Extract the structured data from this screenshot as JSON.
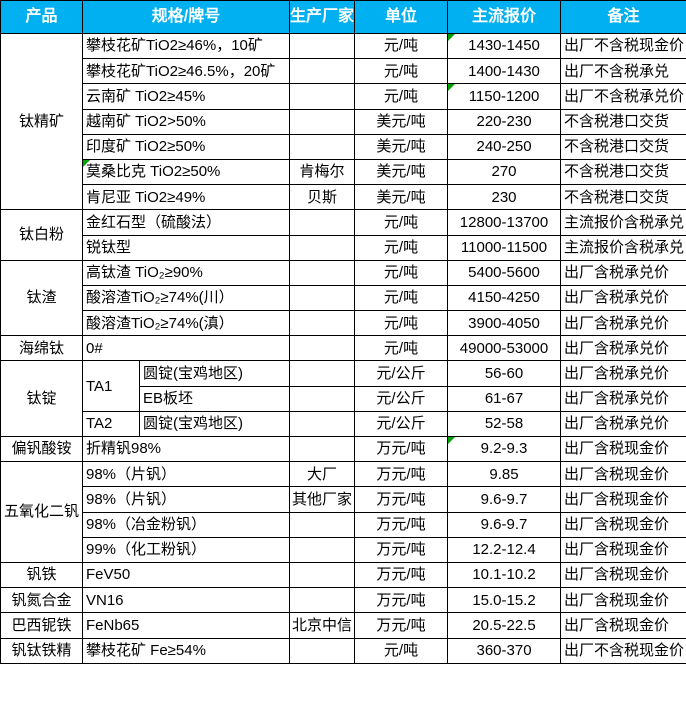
{
  "colors": {
    "header_bg": "#00B0F0",
    "header_text": "#FFFFFF",
    "grid_border": "#000000",
    "comment_triangle": "#00A000"
  },
  "header": {
    "columns": [
      "产品",
      "规格/牌号",
      "生产厂家",
      "单位",
      "主流报价",
      "备注"
    ]
  },
  "table": {
    "sections": [
      {
        "product": "钛精矿",
        "rows": [
          {
            "spec": "攀枝花矿TiO2≥46%，10矿",
            "maker": "",
            "unit": "元/吨",
            "price": "1430-1450",
            "note": "出厂不含税现金价",
            "price_flag": true
          },
          {
            "spec": "攀枝花矿TiO2≥46.5%，20矿",
            "maker": "",
            "unit": "元/吨",
            "price": "1400-1430",
            "note": "出厂不含税承兑"
          },
          {
            "spec": "云南矿 TiO2≥45%",
            "maker": "",
            "unit": "元/吨",
            "price": "1150-1200",
            "note": "出厂不含税承兑价",
            "price_flag": true
          },
          {
            "spec": "越南矿 TiO2>50%",
            "maker": "",
            "unit": "美元/吨",
            "price": "220-230",
            "note": "不含税港口交货"
          },
          {
            "spec": "印度矿 TiO2≥50%",
            "maker": "",
            "unit": "美元/吨",
            "price": "240-250",
            "note": "不含税港口交货"
          },
          {
            "spec": "莫桑比克 TiO2≥50%",
            "maker": "肯梅尔",
            "unit": "美元/吨",
            "price": "270",
            "note": "不含税港口交货",
            "spec_flag": true
          },
          {
            "spec": "肯尼亚 TiO2≥49%",
            "maker": "贝斯",
            "unit": "美元/吨",
            "price": "230",
            "note": "不含税港口交货"
          }
        ]
      },
      {
        "product": "钛白粉",
        "rows": [
          {
            "spec": "金红石型（硫酸法）",
            "maker": "",
            "unit": "元/吨",
            "price": "12800-13700",
            "note": "主流报价含税承兑"
          },
          {
            "spec": "锐钛型",
            "maker": "",
            "unit": "元/吨",
            "price": "11000-11500",
            "note": "主流报价含税承兑"
          }
        ]
      },
      {
        "product": "钛渣",
        "rows": [
          {
            "spec": "高钛渣 TiO₂≥90%",
            "maker": "",
            "unit": "元/吨",
            "price": "5400-5600",
            "note": "出厂含税承兑价"
          },
          {
            "spec": "酸溶渣TiO₂≥74%(川）",
            "maker": "",
            "unit": "元/吨",
            "price": "4150-4250",
            "note": "出厂含税承兑价"
          },
          {
            "spec": "酸溶渣TiO₂≥74%(滇）",
            "maker": "",
            "unit": "元/吨",
            "price": "3900-4050",
            "note": "出厂含税承兑价"
          }
        ]
      },
      {
        "product": "海绵钛",
        "rows": [
          {
            "spec": "0#",
            "maker": "",
            "unit": "元/吨",
            "price": "49000-53000",
            "note": "出厂含税承兑价"
          }
        ]
      },
      {
        "product": "钛锭",
        "rows": [
          {
            "spec": "TA1",
            "spec_rowspan": 2,
            "spec2": "圆锭(宝鸡地区)",
            "maker": "",
            "unit": "元/公斤",
            "price": "56-60",
            "note": "出厂含税承兑价"
          },
          {
            "spec2": "EB板坯",
            "maker": "",
            "unit": "元/公斤",
            "price": "61-67",
            "note": "出厂含税承兑价"
          },
          {
            "spec": "TA2",
            "spec_rowspan": 1,
            "spec2": "圆锭(宝鸡地区)",
            "maker": "",
            "unit": "元/公斤",
            "price": "52-58",
            "note": "出厂含税承兑价"
          }
        ]
      },
      {
        "product": "偏钒酸铵",
        "rows": [
          {
            "spec": "折精钒98%",
            "maker": "",
            "unit": "万元/吨",
            "price": "9.2-9.3",
            "note": "出厂含税现金价",
            "price_flag": true
          }
        ]
      },
      {
        "product": "五氧化二钒",
        "rows": [
          {
            "spec": "98%（片钒）",
            "maker": "大厂",
            "unit": "万元/吨",
            "price": "9.85",
            "note": "出厂含税现金价"
          },
          {
            "spec": "98%（片钒）",
            "maker": "其他厂家",
            "unit": "万元/吨",
            "price": "9.6-9.7",
            "note": "出厂含税现金价"
          },
          {
            "spec": "98%（冶金粉钒）",
            "maker": "",
            "unit": "万元/吨",
            "price": "9.6-9.7",
            "note": "出厂含税现金价"
          },
          {
            "spec": "99%（化工粉钒）",
            "maker": "",
            "unit": "万元/吨",
            "price": "12.2-12.4",
            "note": "出厂含税现金价"
          }
        ]
      },
      {
        "product": "钒铁",
        "rows": [
          {
            "spec": "FeV50",
            "maker": "",
            "unit": "万元/吨",
            "price": "10.1-10.2",
            "note": "出厂含税现金价"
          }
        ]
      },
      {
        "product": "钒氮合金",
        "rows": [
          {
            "spec": "VN16",
            "maker": "",
            "unit": "万元/吨",
            "price": "15.0-15.2",
            "note": "出厂含税现金价"
          }
        ]
      },
      {
        "product": "巴西铌铁",
        "rows": [
          {
            "spec": "FeNb65",
            "maker": "北京中信",
            "unit": "万元/吨",
            "price": "20.5-22.5",
            "note": "出厂含税现金价"
          }
        ]
      },
      {
        "product": "钒钛铁精",
        "rows": [
          {
            "spec": "攀枝花矿 Fe≥54%",
            "maker": "",
            "unit": "元/吨",
            "price": "360-370",
            "note": "出厂不含税现金价"
          }
        ]
      }
    ]
  }
}
